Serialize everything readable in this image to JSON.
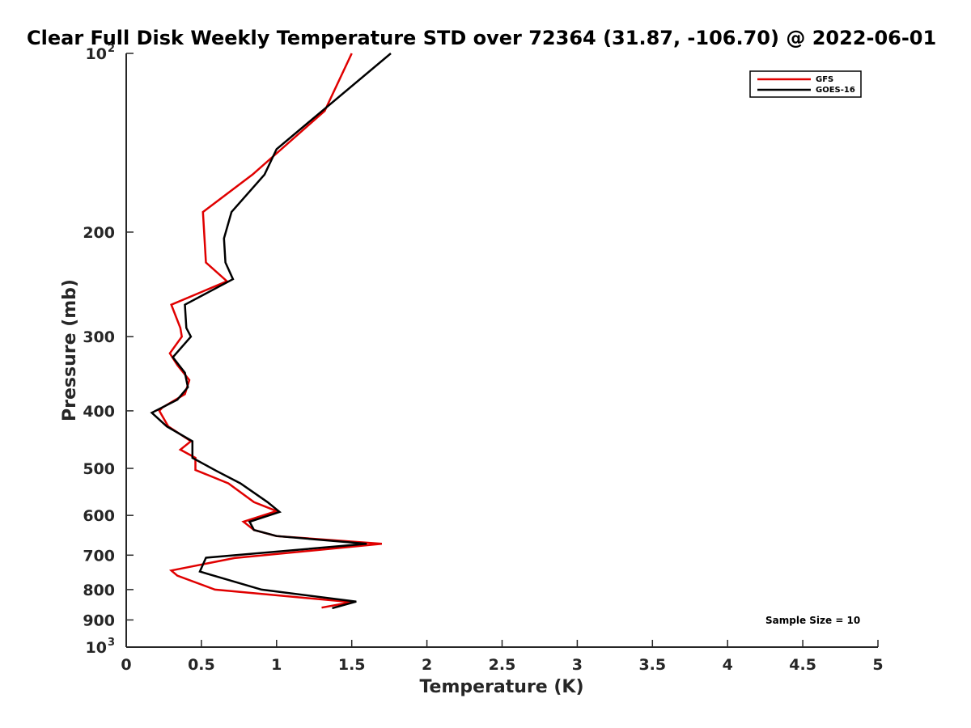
{
  "chart_data": {
    "type": "line",
    "title": "Clear Full Disk Weekly Temperature STD over 72364 (31.87, -106.70) @ 2022-06-01",
    "xlabel": "Temperature (K)",
    "ylabel": "Pressure (mb)",
    "xlim": [
      0,
      5
    ],
    "ylim": [
      100,
      1000
    ],
    "y_scale": "log",
    "y_reversed": true,
    "grid": false,
    "legend_position": "top-right",
    "x_ticks": [
      {
        "value": 0,
        "label": "0"
      },
      {
        "value": 0.5,
        "label": "0.5"
      },
      {
        "value": 1,
        "label": "1"
      },
      {
        "value": 1.5,
        "label": "1.5"
      },
      {
        "value": 2,
        "label": "2"
      },
      {
        "value": 2.5,
        "label": "2.5"
      },
      {
        "value": 3,
        "label": "3"
      },
      {
        "value": 3.5,
        "label": "3.5"
      },
      {
        "value": 4,
        "label": "4"
      },
      {
        "value": 4.5,
        "label": "4.5"
      },
      {
        "value": 5,
        "label": "5"
      }
    ],
    "y_ticks": [
      {
        "value": 200,
        "label": "200"
      },
      {
        "value": 300,
        "label": "300"
      },
      {
        "value": 400,
        "label": "400"
      },
      {
        "value": 500,
        "label": "500"
      },
      {
        "value": 600,
        "label": "600"
      },
      {
        "value": 700,
        "label": "700"
      },
      {
        "value": 800,
        "label": "800"
      },
      {
        "value": 900,
        "label": "900"
      }
    ],
    "y_ticks_power": [
      {
        "value": 100,
        "base": "10",
        "exp": "2"
      },
      {
        "value": 1000,
        "base": "10",
        "exp": "3"
      }
    ],
    "series": [
      {
        "name": "GFS",
        "color": "#e00000",
        "points": [
          [
            1.5,
            100
          ],
          [
            1.32,
            125
          ],
          [
            0.84,
            160
          ],
          [
            0.51,
            185
          ],
          [
            0.53,
            225
          ],
          [
            0.67,
            242
          ],
          [
            0.3,
            265
          ],
          [
            0.36,
            290
          ],
          [
            0.37,
            300
          ],
          [
            0.29,
            320
          ],
          [
            0.34,
            335
          ],
          [
            0.42,
            355
          ],
          [
            0.39,
            375
          ],
          [
            0.24,
            395
          ],
          [
            0.22,
            400
          ],
          [
            0.28,
            425
          ],
          [
            0.43,
            450
          ],
          [
            0.36,
            465
          ],
          [
            0.46,
            480
          ],
          [
            0.46,
            503
          ],
          [
            0.68,
            530
          ],
          [
            0.85,
            570
          ],
          [
            1.0,
            590
          ],
          [
            0.78,
            615
          ],
          [
            0.85,
            635
          ],
          [
            1.0,
            650
          ],
          [
            1.7,
            670
          ],
          [
            0.72,
            708
          ],
          [
            0.3,
            743
          ],
          [
            0.34,
            758
          ],
          [
            0.59,
            800
          ],
          [
            1.5,
            840
          ],
          [
            1.3,
            858
          ]
        ]
      },
      {
        "name": "GOES-16",
        "color": "#000000",
        "points": [
          [
            1.76,
            100
          ],
          [
            1.0,
            145
          ],
          [
            0.92,
            160
          ],
          [
            0.7,
            185
          ],
          [
            0.65,
            205
          ],
          [
            0.66,
            225
          ],
          [
            0.71,
            240
          ],
          [
            0.39,
            265
          ],
          [
            0.4,
            290
          ],
          [
            0.43,
            300
          ],
          [
            0.31,
            325
          ],
          [
            0.39,
            345
          ],
          [
            0.41,
            365
          ],
          [
            0.34,
            383
          ],
          [
            0.17,
            403
          ],
          [
            0.27,
            425
          ],
          [
            0.44,
            450
          ],
          [
            0.44,
            480
          ],
          [
            0.6,
            505
          ],
          [
            0.76,
            530
          ],
          [
            0.94,
            570
          ],
          [
            1.02,
            592
          ],
          [
            0.82,
            615
          ],
          [
            0.85,
            635
          ],
          [
            1.0,
            650
          ],
          [
            1.6,
            670
          ],
          [
            0.53,
            707
          ],
          [
            0.49,
            746
          ],
          [
            0.9,
            800
          ],
          [
            1.53,
            838
          ],
          [
            1.37,
            860
          ]
        ]
      }
    ],
    "legend": [
      "GFS",
      "GOES-16"
    ],
    "annotation": "Sample Size = 10"
  }
}
